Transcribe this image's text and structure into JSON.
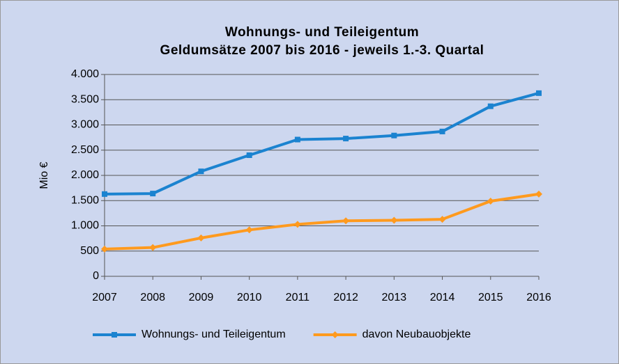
{
  "chart_data": {
    "type": "line",
    "title": "Wohnungs- und Teileigentum",
    "subtitle": "Geldumsätze  2007 bis 2016 - jeweils 1.-3. Quartal",
    "y_label": "Mio €",
    "categories": [
      "2007",
      "2008",
      "2009",
      "2010",
      "2011",
      "2012",
      "2013",
      "2014",
      "2015",
      "2016"
    ],
    "series": [
      {
        "name": "Wohnungs- und Teileigentum",
        "color": "#1b83d0",
        "marker": "square",
        "values": [
          1630,
          1640,
          2080,
          2400,
          2710,
          2730,
          2790,
          2870,
          3370,
          3630
        ]
      },
      {
        "name": "davon Neubauobjekte",
        "color": "#ff9a1e",
        "marker": "diamond",
        "values": [
          540,
          570,
          760,
          920,
          1030,
          1100,
          1110,
          1130,
          1490,
          1630
        ]
      }
    ],
    "ylim": [
      0,
      4000
    ],
    "yticks": [
      0,
      500,
      {
        "value": 1000,
        "label": "1.000"
      },
      {
        "value": 1500,
        "label": "1.500"
      },
      {
        "value": 2000,
        "label": "2.000"
      },
      {
        "value": 2500,
        "label": "2.500"
      },
      {
        "value": 3000,
        "label": "3.000"
      },
      {
        "value": 3500,
        "label": "3.500"
      },
      {
        "value": 4000,
        "label": "4.000"
      }
    ],
    "grid": true,
    "legend": "bottom"
  }
}
